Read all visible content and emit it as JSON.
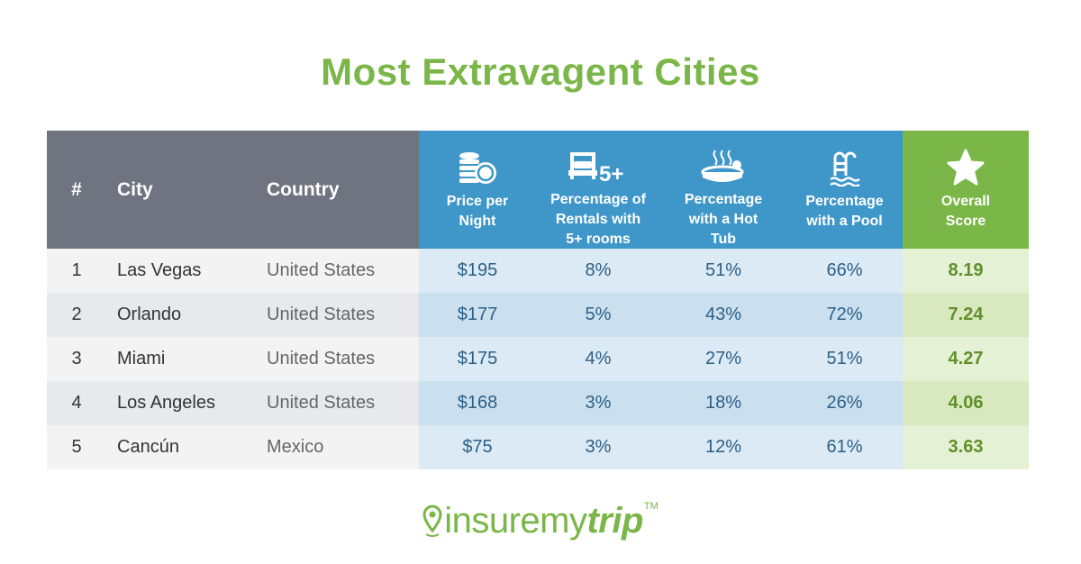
{
  "title": "Most Extravagent Cities",
  "chart_data": {
    "type": "table",
    "title": "Most Extravagent Cities",
    "columns": [
      {
        "key": "rank",
        "label": "#",
        "icon": ""
      },
      {
        "key": "city",
        "label": "City",
        "icon": ""
      },
      {
        "key": "country",
        "label": "Country",
        "icon": ""
      },
      {
        "key": "price",
        "label": "Price per\nNight",
        "icon": "coins-icon"
      },
      {
        "key": "rooms",
        "label": "Percentage of\nRentals with\n5+ rooms",
        "icon": "bed-5plus-icon"
      },
      {
        "key": "tub",
        "label": "Percentage\nwith a Hot\nTub",
        "icon": "hot-tub-icon"
      },
      {
        "key": "pool",
        "label": "Percentage\nwith a Pool",
        "icon": "pool-ladder-icon"
      },
      {
        "key": "score",
        "label": "Overall\nScore",
        "icon": "star-icon"
      }
    ],
    "rows": [
      {
        "rank": "1",
        "city": "Las Vegas",
        "country": "United States",
        "price": "$195",
        "rooms": "8%",
        "tub": "51%",
        "pool": "66%",
        "score": "8.19"
      },
      {
        "rank": "2",
        "city": "Orlando",
        "country": "United States",
        "price": "$177",
        "rooms": "5%",
        "tub": "43%",
        "pool": "72%",
        "score": "7.24"
      },
      {
        "rank": "3",
        "city": "Miami",
        "country": "United States",
        "price": "$175",
        "rooms": "4%",
        "tub": "27%",
        "pool": "51%",
        "score": "4.27"
      },
      {
        "rank": "4",
        "city": "Los Angeles",
        "country": "United States",
        "price": "$168",
        "rooms": "3%",
        "tub": "18%",
        "pool": "26%",
        "score": "4.06"
      },
      {
        "rank": "5",
        "city": "Cancún",
        "country": "Mexico",
        "price": "$75",
        "rooms": "3%",
        "tub": "12%",
        "pool": "61%",
        "score": "3.63"
      }
    ]
  },
  "colors": {
    "title": "#7ab648",
    "header_gray": "#6f7480",
    "header_blue": "#3f97c9",
    "header_green": "#7ab648"
  },
  "logo": {
    "part1": "insuremy",
    "part2": "trip",
    "tm": "TM",
    "icon": "location-pin-icon"
  }
}
